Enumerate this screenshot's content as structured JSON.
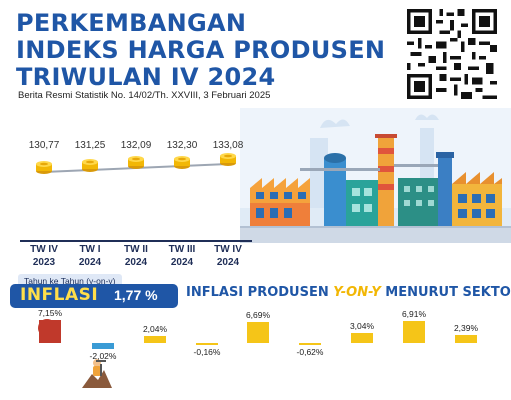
{
  "header": {
    "title_lines": [
      "PERKEMBANGAN",
      "INDEKS HARGA PRODUSEN",
      "TRIWULAN IV 2024"
    ],
    "subtitle": "Berita Resmi Statistik No. 14/02/Th. XXVIII, 3 Februari 2025"
  },
  "trend": {
    "points": [
      {
        "quarter": "TW IV",
        "year": "2023",
        "value": "130,77"
      },
      {
        "quarter": "TW I",
        "year": "2024",
        "value": "131,25"
      },
      {
        "quarter": "TW II",
        "year": "2024",
        "value": "132,09"
      },
      {
        "quarter": "TW III",
        "year": "2024",
        "value": "132,30"
      },
      {
        "quarter": "TW IV",
        "year": "2024",
        "value": "133,08"
      }
    ]
  },
  "inflation": {
    "sub_label": "Tahun ke Tahun (y-on-y)",
    "label": "INFLASI",
    "value": "1,77 %"
  },
  "sector_title": {
    "prefix": "INFLASI PRODUSEN ",
    "highlight": "Y-ON-Y",
    "suffix": " MENURUT SEKTOR"
  },
  "sectors": [
    {
      "label": "7,15%",
      "value": 7.15,
      "color": "#c0392b"
    },
    {
      "label": "-2,02%",
      "value": -2.02,
      "color": "#3a9bd5"
    },
    {
      "label": "2,04%",
      "value": 2.04,
      "color": "#f5c518"
    },
    {
      "label": "-0,16%",
      "value": -0.16,
      "color": "#f5c518"
    },
    {
      "label": "6,69%",
      "value": 6.69,
      "color": "#f5c518"
    },
    {
      "label": "-0,62%",
      "value": -0.62,
      "color": "#f5c518"
    },
    {
      "label": "3,04%",
      "value": 3.04,
      "color": "#f5c518"
    },
    {
      "label": "6,91%",
      "value": 6.91,
      "color": "#f5c518"
    },
    {
      "label": "2,39%",
      "value": 2.39,
      "color": "#f5c518"
    }
  ],
  "colors": {
    "primary": "#1f56a6",
    "accent": "#ffde4a",
    "dark": "#1f2e57"
  }
}
